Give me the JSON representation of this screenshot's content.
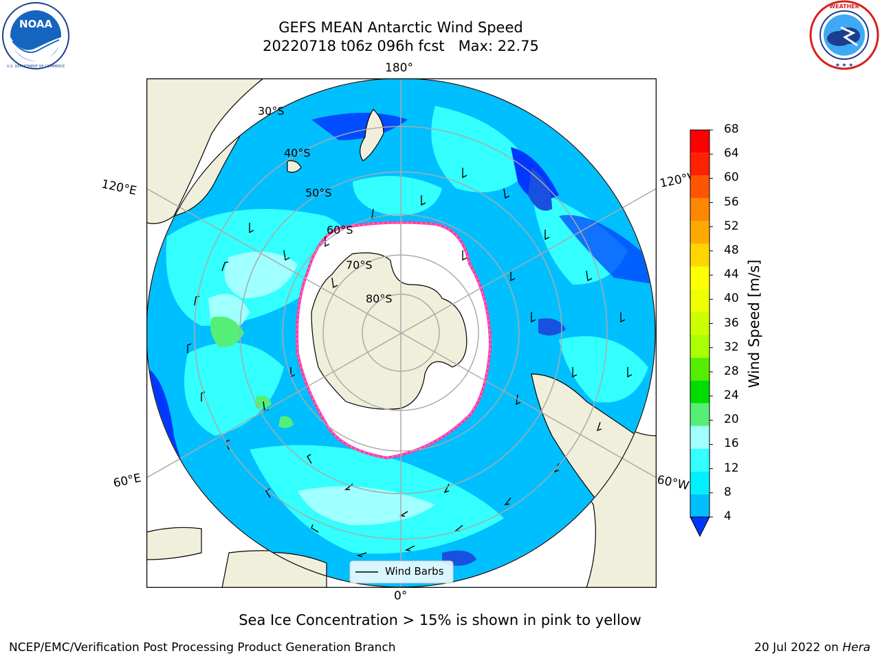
{
  "header": {
    "title": "GEFS MEAN Antarctic Wind Speed",
    "subtitle": "20220718 t06z 096h fcst   Max: 22.75"
  },
  "logos": {
    "left": {
      "name": "NOAA",
      "ring_text": "NATIONAL OCEANIC AND ATMOSPHERIC ADMINISTRATION · U.S. DEPARTMENT OF COMMERCE"
    },
    "right": {
      "ring_text": "NATIONAL WEATHER SERVICE"
    }
  },
  "map": {
    "projection": "south polar stereographic",
    "longitude_labels": {
      "top": "180°",
      "bottom": "0°",
      "left_upper": "120°E",
      "left_lower": "60°E",
      "right_upper": "120°W",
      "right_lower": "60°W"
    },
    "latitude_labels": [
      "30°S",
      "40°S",
      "50°S",
      "60°S",
      "70°S",
      "80°S"
    ],
    "legend": {
      "label": "Wind Barbs"
    }
  },
  "colorbar": {
    "label": "Wind Speed [m/s]",
    "ticks": [
      "4",
      "8",
      "12",
      "16",
      "20",
      "24",
      "28",
      "32",
      "36",
      "40",
      "44",
      "48",
      "52",
      "56",
      "60",
      "64",
      "68"
    ],
    "colors": [
      "#0037ff",
      "#00bfff",
      "#00f0ff",
      "#33ffff",
      "#a0ffff",
      "#55ee77",
      "#00dd00",
      "#55ee00",
      "#aaff00",
      "#ccff00",
      "#eeff00",
      "#ffff00",
      "#ffd700",
      "#ffaa00",
      "#ff8800",
      "#ff5500",
      "#ff2200",
      "#ff0000"
    ],
    "extend": "min"
  },
  "caption": "Sea Ice Concentration > 15% is shown in pink to yellow",
  "footer": {
    "left": "NCEP/EMC/Verification Post Processing Product Generation Branch",
    "right_date": "20 Jul 2022 on",
    "right_host": "Hera"
  }
}
